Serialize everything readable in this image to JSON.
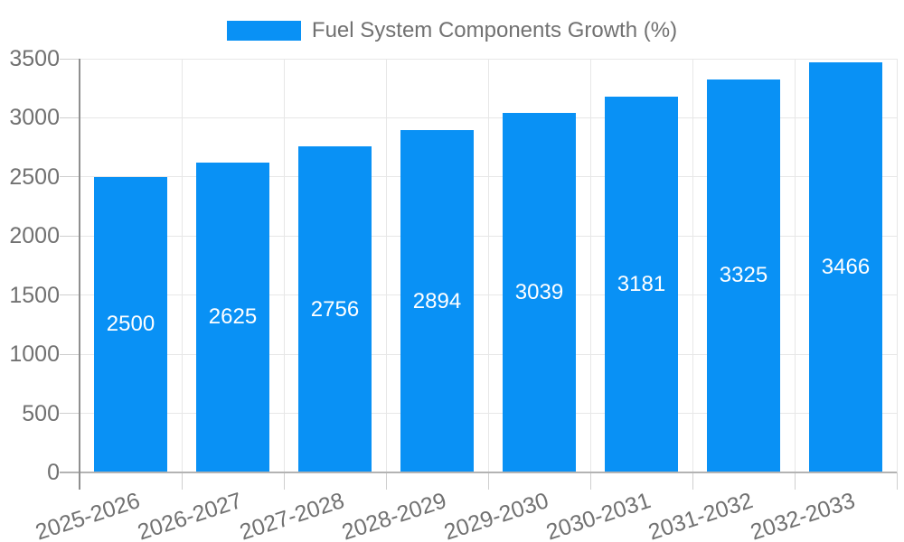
{
  "chart_data": {
    "type": "bar",
    "title": "Fuel System Components Growth (%)",
    "legend_entries": [
      "Fuel System Components Growth (%)"
    ],
    "legend_position": "top-center",
    "categories": [
      "2025-2026",
      "2026-2027",
      "2027-2028",
      "2028-2029",
      "2029-2030",
      "2030-2031",
      "2031-2032",
      "2032-2033"
    ],
    "values": [
      2500,
      2625,
      2756,
      2894,
      3039,
      3181,
      3325,
      3466
    ],
    "xlabel": "",
    "ylabel": "",
    "ylim": [
      0,
      3500
    ],
    "yticks": [
      0,
      500,
      1000,
      1500,
      2000,
      2500,
      3000,
      3500
    ],
    "grid": true,
    "value_labels_inside_bars": true,
    "x_label_rotation_deg": -18,
    "colors": {
      "bar": "#0991f5",
      "value_label": "#ffffff",
      "axis_text": "#717171",
      "gridline": "#e7e7e7",
      "tick": "#cfcfcf",
      "baseline": "#b3b3b3",
      "y_axis_line": "#8f8f8f",
      "background": "#ffffff"
    }
  }
}
